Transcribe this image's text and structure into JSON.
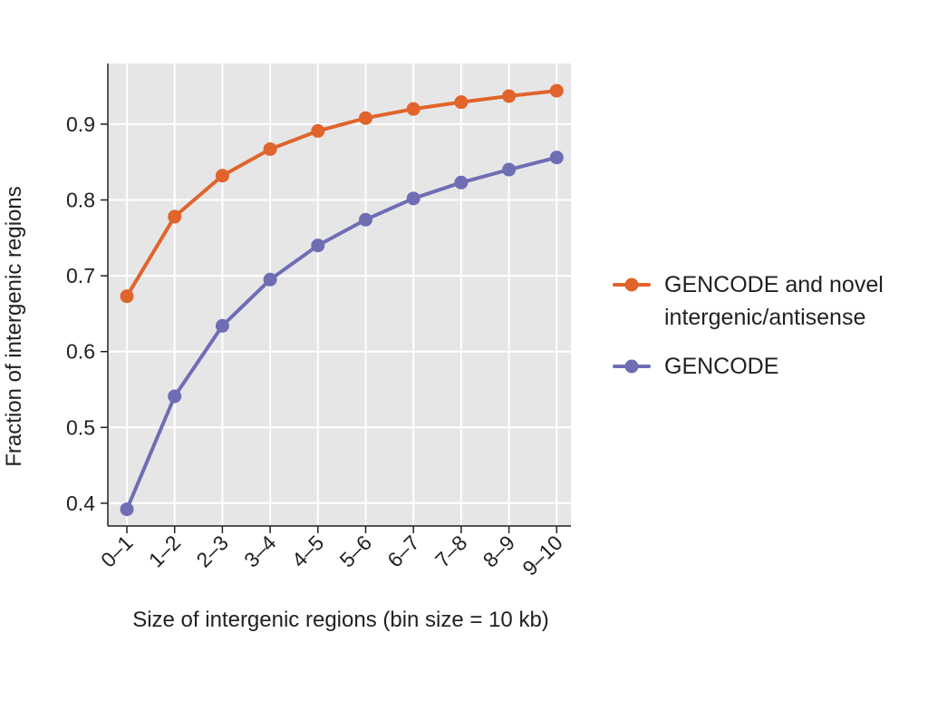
{
  "chart_data": {
    "type": "line",
    "title": "",
    "xlabel": "Size of intergenic regions (bin size = 10 kb)",
    "ylabel": "Fraction of intergenic regions",
    "categories": [
      "0–1",
      "1–2",
      "2–3",
      "3–4",
      "4–5",
      "5–6",
      "6–7",
      "7–8",
      "8–9",
      "9–10"
    ],
    "ylim": [
      0.37,
      0.98
    ],
    "yticks": [
      "0.4",
      "0.5",
      "0.6",
      "0.7",
      "0.8",
      "0.9"
    ],
    "ytick_values": [
      0.4,
      0.5,
      0.6,
      0.7,
      0.8,
      0.9
    ],
    "grid": true,
    "legend_position": "right",
    "series": [
      {
        "name_lines": [
          "GENCODE and novel",
          "intergenic/antisense"
        ],
        "color": "#e0642b",
        "values": [
          0.673,
          0.778,
          0.832,
          0.867,
          0.891,
          0.908,
          0.92,
          0.929,
          0.937,
          0.944
        ]
      },
      {
        "name_lines": [
          "GENCODE"
        ],
        "color": "#6f6db4",
        "values": [
          0.392,
          0.541,
          0.634,
          0.695,
          0.74,
          0.774,
          0.802,
          0.823,
          0.84,
          0.856
        ]
      }
    ]
  }
}
